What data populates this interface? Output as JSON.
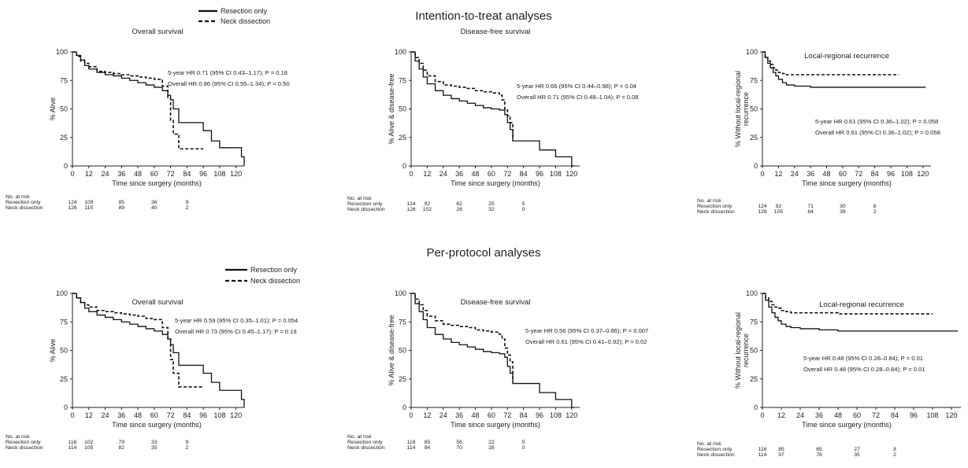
{
  "sections": [
    {
      "title": "Intention-to-treat analyses"
    },
    {
      "title": "Per-protocol analyses"
    }
  ],
  "legend": {
    "solid": "Resection only",
    "dashed": "Neck dissection"
  },
  "risk_labels": {
    "header": "No. at risk",
    "row1": "Resection only",
    "row2": "Neck dissection"
  },
  "chart_data": [
    {
      "type": "line",
      "section": 0,
      "title": "Overall survival",
      "xlabel": "Time since surgery (months)",
      "ylabel": "% Alive",
      "xlim": [
        0,
        126
      ],
      "ylim": [
        0,
        100
      ],
      "xticks": [
        0,
        12,
        24,
        36,
        48,
        60,
        72,
        84,
        96,
        108,
        120
      ],
      "yticks": [
        0,
        25,
        50,
        75,
        100
      ],
      "hr_lines": [
        "5-year HR 0.71 (95% CI 0.43–1.17); P = 0.18",
        "Overall HR 0.86 (95% CI 0.55–1.34); P = 0.50"
      ],
      "series": [
        {
          "name": "Resection only",
          "style": "solid",
          "x": [
            0,
            3,
            6,
            9,
            12,
            18,
            24,
            30,
            36,
            42,
            48,
            54,
            60,
            66,
            70,
            72,
            74,
            78,
            84,
            90,
            96,
            102,
            108,
            114,
            120,
            124,
            126
          ],
          "y": [
            100,
            97,
            93,
            88,
            85,
            82,
            80,
            79,
            77,
            75,
            73,
            71,
            69,
            66,
            62,
            58,
            50,
            38,
            38,
            38,
            31,
            22,
            16,
            16,
            16,
            8,
            0
          ]
        },
        {
          "name": "Neck dissection",
          "style": "dashed",
          "x": [
            0,
            3,
            6,
            9,
            12,
            18,
            24,
            30,
            36,
            42,
            48,
            54,
            60,
            66,
            70,
            72,
            74,
            78,
            84,
            96
          ],
          "y": [
            100,
            96,
            92,
            90,
            87,
            83,
            82,
            81,
            80,
            79,
            78,
            77,
            76,
            70,
            60,
            40,
            28,
            15,
            15,
            15
          ]
        }
      ],
      "risk": {
        "x": [
          0,
          12,
          36,
          60,
          84
        ],
        "row1": [
          124,
          109,
          85,
          36,
          9
        ],
        "row2": [
          126,
          115,
          89,
          40,
          2
        ]
      }
    },
    {
      "type": "line",
      "section": 0,
      "title": "Disease-free survival",
      "xlabel": "Time since surgery (months)",
      "ylabel": "% Alive & disease-free",
      "xlim": [
        0,
        126
      ],
      "ylim": [
        0,
        100
      ],
      "xticks": [
        0,
        12,
        24,
        36,
        48,
        60,
        72,
        84,
        96,
        108,
        120
      ],
      "yticks": [
        0,
        25,
        50,
        75,
        100
      ],
      "hr_lines": [
        "5-year HR 0.66 (95% CI 0.44–0.98); P = 0.04",
        "Overall HR 0.71 (95% CI 0.48–1.04); P = 0.08"
      ],
      "series": [
        {
          "name": "Resection only",
          "style": "solid",
          "x": [
            0,
            3,
            6,
            9,
            12,
            18,
            24,
            30,
            36,
            42,
            48,
            54,
            60,
            66,
            70,
            72,
            74,
            76,
            84,
            96,
            108,
            120,
            122
          ],
          "y": [
            100,
            92,
            85,
            78,
            72,
            66,
            62,
            59,
            57,
            55,
            53,
            51,
            50,
            49,
            45,
            38,
            32,
            22,
            22,
            14,
            8,
            0,
            0
          ]
        },
        {
          "name": "Neck dissection",
          "style": "dashed",
          "x": [
            0,
            3,
            6,
            9,
            12,
            18,
            24,
            30,
            36,
            42,
            48,
            54,
            60,
            66,
            68,
            70,
            72,
            74,
            76
          ],
          "y": [
            100,
            95,
            90,
            84,
            79,
            74,
            71,
            70,
            69,
            68,
            66,
            65,
            64,
            62,
            58,
            50,
            44,
            38,
            22
          ]
        }
      ],
      "risk": {
        "x": [
          0,
          12,
          36,
          60,
          84
        ],
        "row1": [
          124,
          92,
          62,
          25,
          5
        ],
        "row2": [
          126,
          102,
          26,
          32,
          0
        ]
      }
    },
    {
      "type": "line",
      "section": 0,
      "title": "Local-regional recurrence",
      "xlabel": "Time since surgery (months)",
      "ylabel": "% Without local-regional recurrence",
      "xlim": [
        0,
        126
      ],
      "ylim": [
        0,
        100
      ],
      "xticks": [
        0,
        12,
        24,
        36,
        48,
        60,
        72,
        84,
        96,
        108,
        120
      ],
      "yticks": [
        0,
        25,
        50,
        75,
        100
      ],
      "hr_lines": [
        "5-year HR 0.61 (95% CI 0.36–1.02); P = 0.058",
        "Overall HR 0.61 (95% CI 0.36–1.02); P = 0.058"
      ],
      "series": [
        {
          "name": "Resection only",
          "style": "solid",
          "x": [
            0,
            2,
            4,
            6,
            8,
            10,
            12,
            15,
            18,
            24,
            36,
            48,
            60,
            84,
            108,
            122
          ],
          "y": [
            100,
            95,
            90,
            86,
            82,
            79,
            76,
            73,
            71,
            70,
            69,
            69,
            69,
            69,
            69,
            69
          ]
        },
        {
          "name": "Neck dissection",
          "style": "dashed",
          "x": [
            0,
            2,
            4,
            6,
            8,
            10,
            12,
            15,
            18,
            24,
            36,
            48,
            60,
            84,
            102
          ],
          "y": [
            100,
            96,
            92,
            89,
            86,
            84,
            82,
            81,
            80,
            80,
            80,
            80,
            80,
            80,
            80
          ]
        }
      ],
      "risk": {
        "x": [
          0,
          12,
          36,
          60,
          84
        ],
        "row1": [
          124,
          92,
          71,
          30,
          8
        ],
        "row2": [
          126,
          105,
          84,
          39,
          2
        ]
      }
    },
    {
      "type": "line",
      "section": 1,
      "title": "Overall survival",
      "xlabel": "Time since surgery (months)",
      "ylabel": "% Alive",
      "xlim": [
        0,
        126
      ],
      "ylim": [
        0,
        100
      ],
      "xticks": [
        0,
        12,
        24,
        36,
        48,
        60,
        72,
        84,
        96,
        108,
        120
      ],
      "yticks": [
        0,
        25,
        50,
        75,
        100
      ],
      "hr_lines": [
        "5-year HR 0.59 (95% CI 0.35–1.01); P = 0.054",
        "Overall HR 0.73 (95% CI 0.45–1.17); P = 0.19"
      ],
      "series": [
        {
          "name": "Resection only",
          "style": "solid",
          "x": [
            0,
            3,
            6,
            9,
            12,
            18,
            24,
            30,
            36,
            42,
            48,
            54,
            60,
            66,
            70,
            72,
            74,
            78,
            84,
            90,
            96,
            102,
            108,
            114,
            120,
            124,
            126
          ],
          "y": [
            100,
            96,
            92,
            87,
            84,
            81,
            79,
            77,
            75,
            73,
            71,
            69,
            67,
            64,
            60,
            55,
            48,
            37,
            37,
            37,
            30,
            22,
            15,
            15,
            15,
            7,
            0
          ]
        },
        {
          "name": "Neck dissection",
          "style": "dashed",
          "x": [
            0,
            3,
            6,
            9,
            12,
            18,
            24,
            30,
            36,
            42,
            48,
            54,
            60,
            66,
            70,
            72,
            74,
            78,
            84,
            96
          ],
          "y": [
            100,
            96,
            92,
            90,
            88,
            85,
            84,
            83,
            82,
            81,
            80,
            78,
            77,
            70,
            60,
            42,
            30,
            18,
            18,
            18
          ]
        }
      ],
      "risk": {
        "x": [
          0,
          12,
          36,
          60,
          84
        ],
        "row1": [
          116,
          102,
          79,
          33,
          9
        ],
        "row2": [
          114,
          105,
          82,
          35,
          2
        ]
      }
    },
    {
      "type": "line",
      "section": 1,
      "title": "Disease-free survival",
      "xlabel": "Time since surgery (months)",
      "ylabel": "% Alive & disease-free",
      "xlim": [
        0,
        126
      ],
      "ylim": [
        0,
        100
      ],
      "xticks": [
        0,
        12,
        24,
        36,
        48,
        60,
        72,
        84,
        96,
        108,
        120
      ],
      "yticks": [
        0,
        25,
        50,
        75,
        100
      ],
      "hr_lines": [
        "5-year HR 0.56 (95% CI 0.37–0.86); P = 0.007",
        "Overall HR 0.61 (95% CI 0.41–0.92); P = 0.02"
      ],
      "series": [
        {
          "name": "Resection only",
          "style": "solid",
          "x": [
            0,
            3,
            6,
            9,
            12,
            18,
            24,
            30,
            36,
            42,
            48,
            54,
            60,
            66,
            70,
            72,
            74,
            76,
            84,
            96,
            108,
            120,
            122
          ],
          "y": [
            100,
            91,
            84,
            77,
            70,
            64,
            60,
            57,
            55,
            53,
            51,
            49,
            48,
            47,
            44,
            36,
            30,
            21,
            21,
            13,
            7,
            0,
            0
          ]
        },
        {
          "name": "Neck dissection",
          "style": "dashed",
          "x": [
            0,
            3,
            6,
            9,
            12,
            18,
            24,
            30,
            36,
            42,
            48,
            54,
            60,
            66,
            68,
            70,
            72,
            74,
            76
          ],
          "y": [
            100,
            95,
            90,
            85,
            80,
            76,
            73,
            72,
            71,
            70,
            68,
            67,
            66,
            64,
            60,
            52,
            46,
            40,
            22
          ]
        }
      ],
      "risk": {
        "x": [
          0,
          12,
          36,
          60,
          84
        ],
        "row1": [
          116,
          85,
          56,
          22,
          5
        ],
        "row2": [
          114,
          94,
          70,
          28,
          0
        ]
      }
    },
    {
      "type": "line",
      "section": 1,
      "title": "Local-regional recurrence",
      "xlabel": "Time since surgery (months)",
      "ylabel": "% Without local-regional recurrence",
      "xlim": [
        0,
        126
      ],
      "ylim": [
        0,
        100
      ],
      "xticks": [
        0,
        12,
        24,
        36,
        48,
        60,
        72,
        84,
        96,
        108,
        120
      ],
      "yticks": [
        0,
        25,
        50,
        75,
        100
      ],
      "hr_lines": [
        "5-year HR 0.48 (95% CI 0.28–0.84); P = 0.01",
        "Overall HR 0.48 (95% CI 0.28–0.84); P = 0.01"
      ],
      "series": [
        {
          "name": "Resection only",
          "style": "solid",
          "x": [
            0,
            2,
            4,
            6,
            8,
            10,
            12,
            15,
            18,
            24,
            36,
            48,
            60,
            84,
            108,
            124
          ],
          "y": [
            100,
            94,
            88,
            83,
            79,
            76,
            73,
            71,
            70,
            69,
            68,
            67,
            67,
            67,
            67,
            67
          ]
        },
        {
          "name": "Neck dissection",
          "style": "dashed",
          "x": [
            0,
            2,
            4,
            6,
            8,
            10,
            12,
            15,
            18,
            24,
            36,
            48,
            60,
            84,
            108
          ],
          "y": [
            100,
            96,
            93,
            90,
            88,
            87,
            85,
            84,
            83,
            83,
            83,
            82,
            82,
            82,
            82
          ]
        }
      ],
      "risk": {
        "x": [
          0,
          12,
          36,
          60,
          84
        ],
        "row1": [
          116,
          85,
          65,
          27,
          8
        ],
        "row2": [
          114,
          97,
          78,
          35,
          2
        ]
      }
    }
  ]
}
